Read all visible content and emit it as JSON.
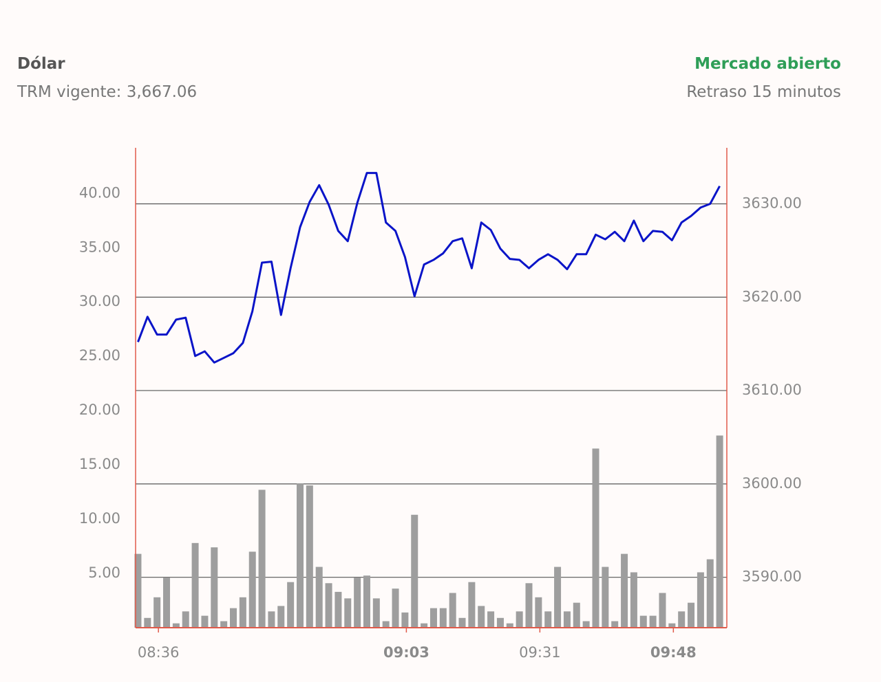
{
  "header": {
    "title": "Dólar",
    "trm": "TRM vigente: 3,667.06",
    "status": "Mercado abierto",
    "delay": "Retraso 15 minutos"
  },
  "chart_data": {
    "type": "combo",
    "categories": [
      null,
      null,
      "08:36",
      null,
      null,
      null,
      null,
      null,
      null,
      null,
      null,
      null,
      null,
      null,
      null,
      null,
      null,
      null,
      null,
      null,
      null,
      null,
      null,
      null,
      null,
      null,
      null,
      null,
      "09:03",
      null,
      null,
      null,
      null,
      null,
      null,
      null,
      null,
      null,
      null,
      null,
      null,
      null,
      "09:31",
      null,
      null,
      null,
      null,
      null,
      null,
      null,
      null,
      null,
      null,
      null,
      null,
      null,
      "09:48",
      null,
      null,
      null,
      null,
      null
    ],
    "series": [
      {
        "type": "bar",
        "color": "#9e9e9e",
        "values": [
          6.8,
          0.9,
          2.8,
          4.6,
          0.4,
          1.5,
          7.8,
          1.1,
          7.4,
          0.6,
          1.8,
          2.8,
          7.0,
          12.7,
          1.5,
          2.0,
          4.2,
          13.3,
          13.1,
          5.6,
          4.1,
          3.3,
          2.7,
          4.6,
          4.8,
          2.7,
          0.6,
          3.6,
          1.4,
          10.4,
          0.4,
          1.8,
          1.8,
          3.2,
          0.9,
          4.2,
          2.0,
          1.5,
          0.9,
          0.4,
          1.5,
          4.1,
          2.8,
          1.5,
          5.6,
          1.5,
          2.3,
          0.6,
          16.5,
          5.6,
          0.6,
          6.8,
          5.1,
          1.1,
          1.1,
          3.2,
          0.4,
          1.5,
          2.3,
          5.1,
          6.3,
          17.7
        ]
      },
      {
        "type": "line",
        "color": "#0a14c8",
        "axis": "y2",
        "values": [
          3615.2,
          3617.9,
          3616.0,
          3616.0,
          3617.6,
          3617.8,
          3613.7,
          3614.2,
          3613.0,
          3613.5,
          3614.0,
          3615.1,
          3618.5,
          3623.7,
          3623.8,
          3618.1,
          3623.1,
          3627.5,
          3630.2,
          3632.0,
          3629.9,
          3627.1,
          3626.0,
          3630.1,
          3633.3,
          3633.3,
          3628.0,
          3627.1,
          3624.3,
          3620.1,
          3623.5,
          3624.0,
          3624.7,
          3626.0,
          3626.3,
          3623.1,
          3628.0,
          3627.2,
          3625.2,
          3624.1,
          3624.0,
          3623.1,
          3624.0,
          3624.6,
          3624.0,
          3623.0,
          3624.6,
          3624.6,
          3626.7,
          3626.2,
          3627.0,
          3626.0,
          3628.2,
          3626.0,
          3627.1,
          3627.0,
          3626.1,
          3628.0,
          3628.7,
          3629.6,
          3630.0,
          3631.9
        ]
      }
    ],
    "ylim": [
      0,
      44.2
    ],
    "yticks": [
      {
        "value": 5,
        "label": "5.00"
      },
      {
        "value": 10,
        "label": "10.00"
      },
      {
        "value": 15,
        "label": "15.00"
      },
      {
        "value": 20,
        "label": "20.00"
      },
      {
        "value": 25,
        "label": "25.00"
      },
      {
        "value": 30,
        "label": "30.00"
      },
      {
        "value": 35,
        "label": "35.00"
      },
      {
        "value": 40,
        "label": "40.00"
      }
    ],
    "y2lim": [
      3584.6,
      3636
    ],
    "y2ticks": [
      {
        "value": 3590,
        "label": "3590.00"
      },
      {
        "value": 3600,
        "label": "3600.00"
      },
      {
        "value": 3610,
        "label": "3610.00"
      },
      {
        "value": 3620,
        "label": "3620.00"
      },
      {
        "value": 3630,
        "label": "3630.00"
      }
    ],
    "grid": true,
    "axis_color": "#e05a4a"
  }
}
